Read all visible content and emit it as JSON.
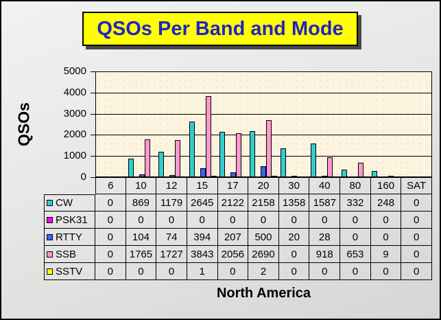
{
  "title": {
    "text": "QSOs Per Band and Mode"
  },
  "colors": {
    "title_text": "#2222C8",
    "title_bg": "#FFFF00",
    "plot_bg": "#FCF4DF",
    "page_bg": "#E3E3E2",
    "grid": "#000000"
  },
  "chart_data": {
    "type": "bar",
    "title": "QSOs Per Band and Mode",
    "xlabel": "North America",
    "ylabel": "QSOs",
    "categories": [
      "6",
      "10",
      "12",
      "15",
      "17",
      "20",
      "30",
      "40",
      "80",
      "160",
      "SAT"
    ],
    "series": [
      {
        "name": "CW",
        "color": "#33CCCC",
        "values": [
          0,
          869,
          1179,
          2645,
          2122,
          2158,
          1358,
          1587,
          332,
          248,
          0
        ]
      },
      {
        "name": "PSK31",
        "color": "#FF00FF",
        "values": [
          0,
          0,
          0,
          0,
          0,
          0,
          0,
          0,
          0,
          0,
          0
        ]
      },
      {
        "name": "RTTY",
        "color": "#3366FF",
        "values": [
          0,
          104,
          74,
          394,
          207,
          500,
          20,
          28,
          0,
          0,
          0
        ]
      },
      {
        "name": "SSB",
        "color": "#FF99CC",
        "values": [
          0,
          1765,
          1727,
          3843,
          2056,
          2690,
          0,
          918,
          653,
          9,
          0
        ]
      },
      {
        "name": "SSTV",
        "color": "#FFFF00",
        "values": [
          0,
          0,
          0,
          1,
          0,
          2,
          0,
          0,
          0,
          0,
          0
        ]
      }
    ],
    "ylim": [
      0,
      5000
    ],
    "yticks": [
      0,
      1000,
      2000,
      3000,
      4000,
      5000
    ],
    "grid": true,
    "legend_position": "table-left"
  }
}
